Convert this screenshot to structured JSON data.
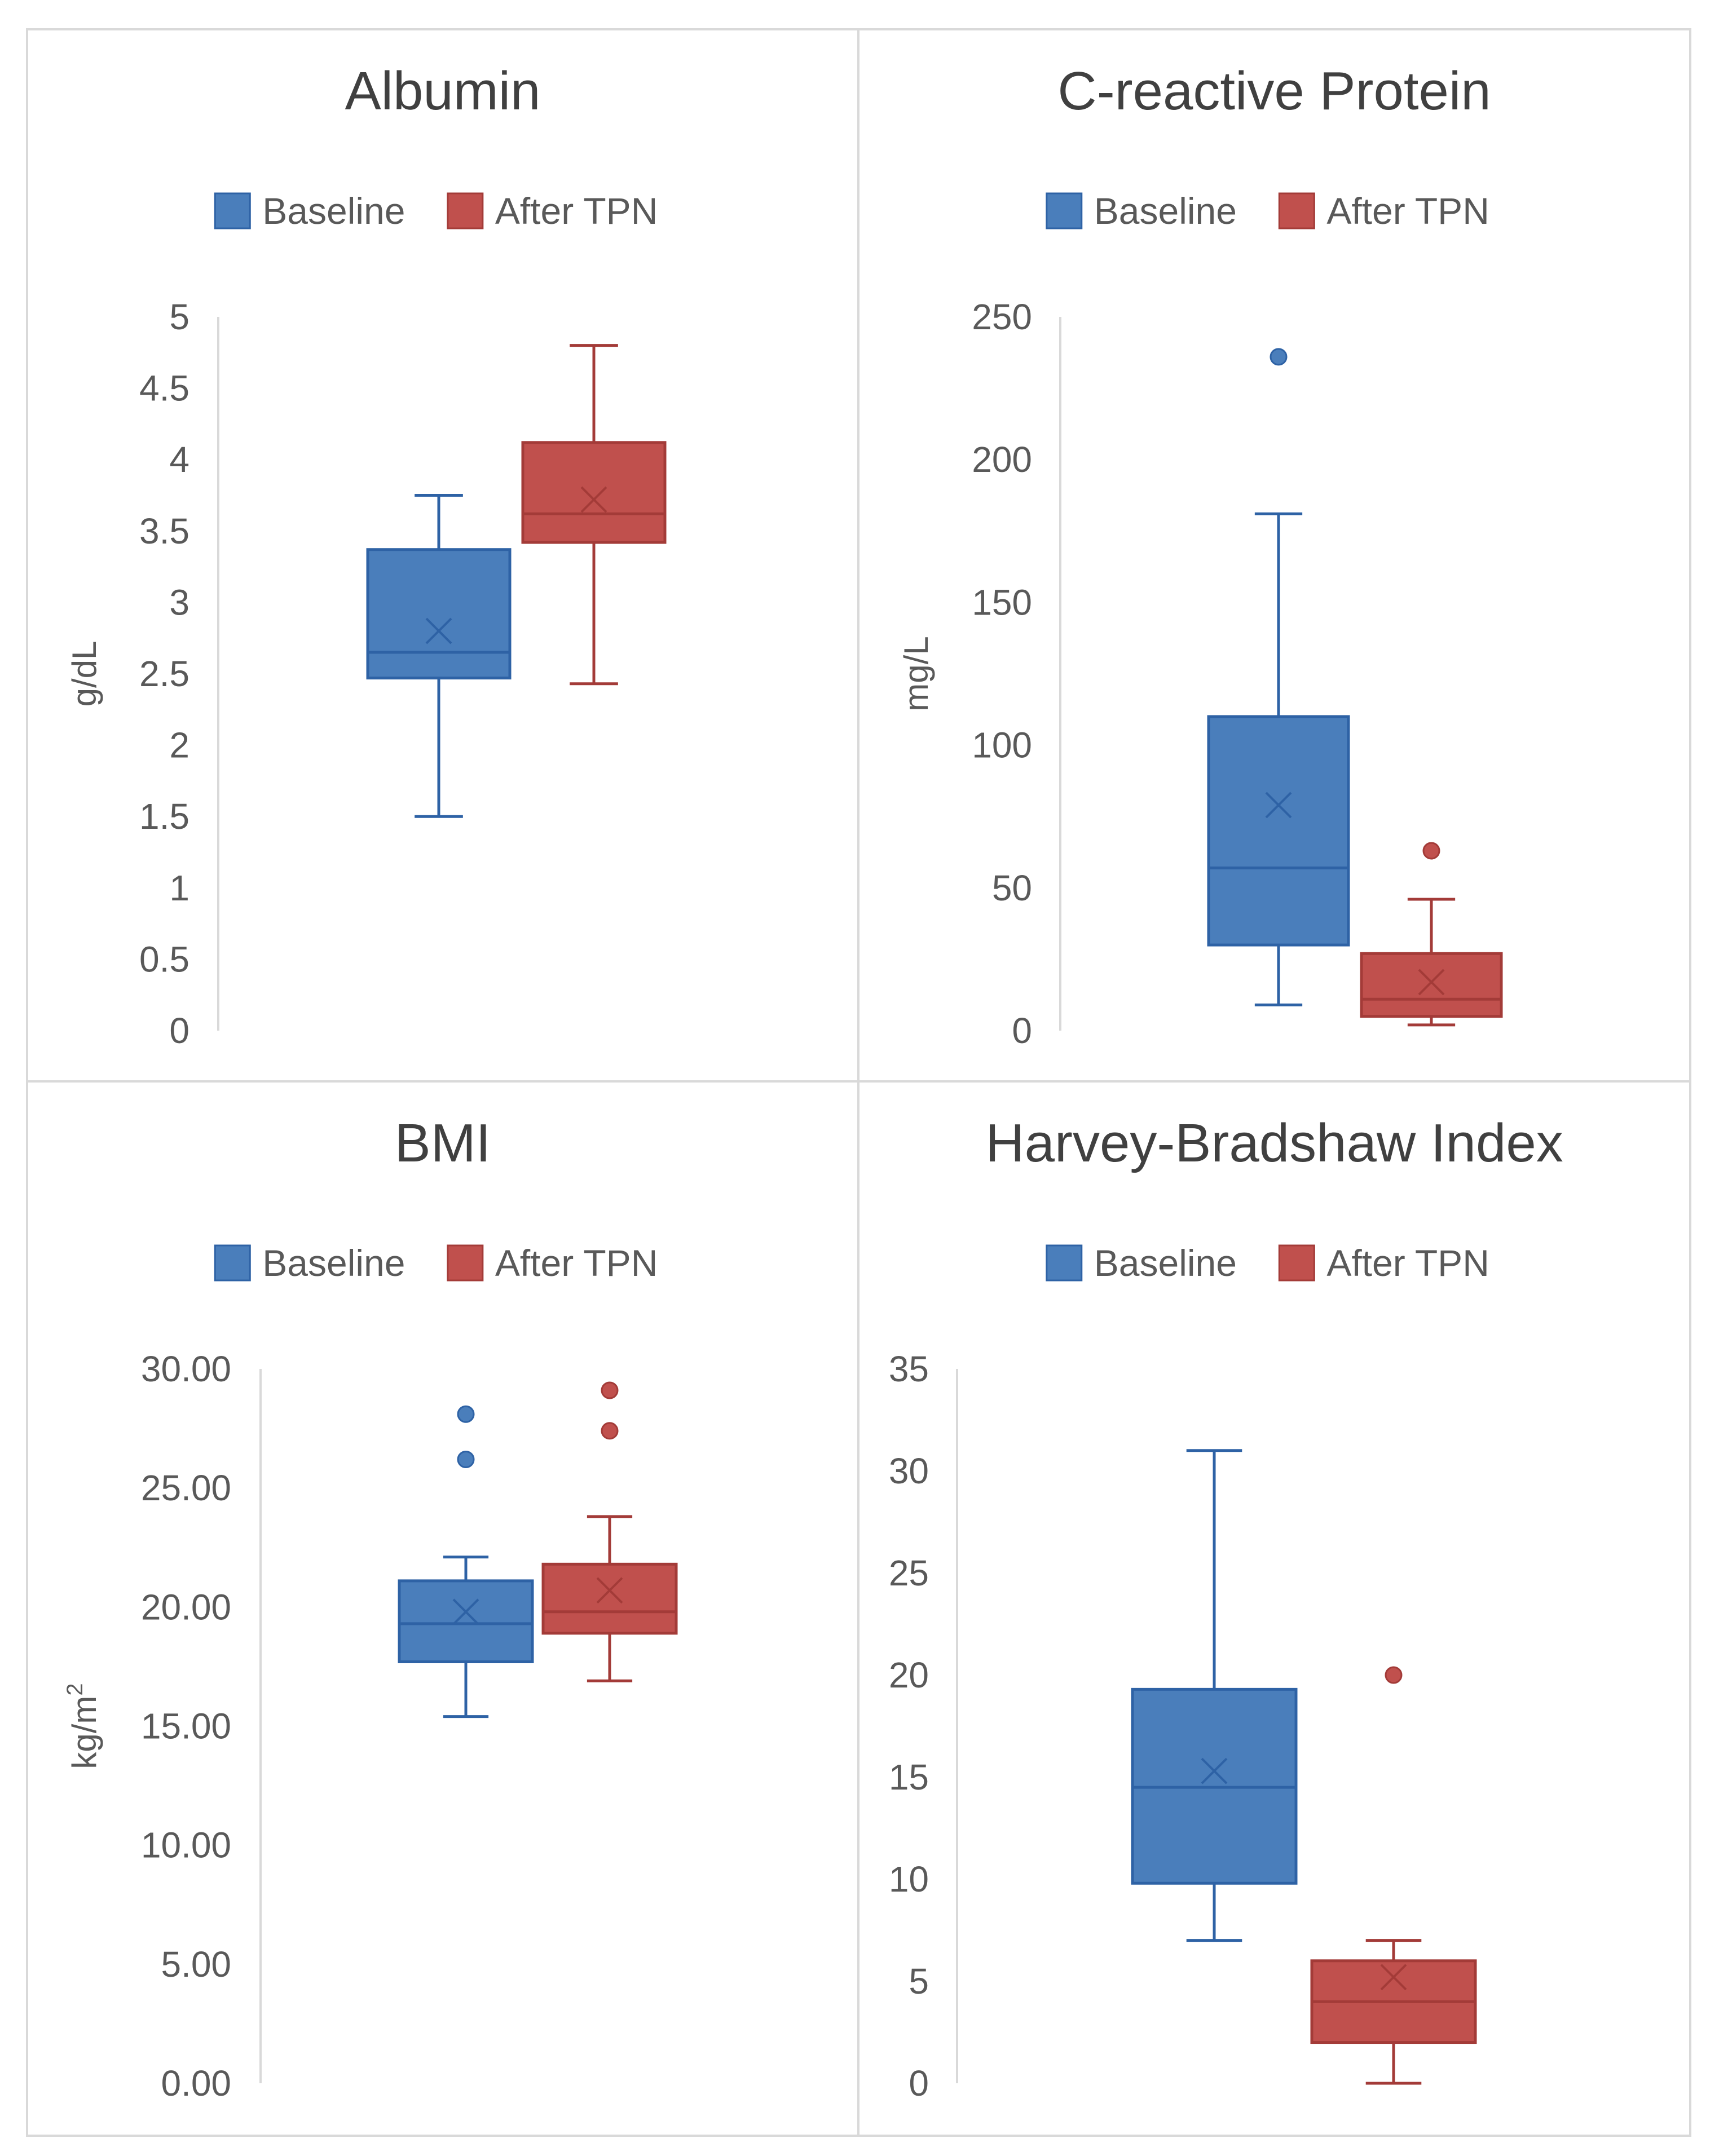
{
  "colors": {
    "baseline_fill": "#4a7ebb",
    "baseline_stroke": "#2e62a5",
    "after_fill": "#c0504d",
    "after_stroke": "#a33b38",
    "axis_text": "#595959",
    "title_text": "#404040",
    "panel_border": "#d9d9d9",
    "axis_line": "#d9d9d9"
  },
  "chart_data": [
    {
      "type": "box",
      "title": "Albumin",
      "ylabel": "g/dL",
      "legend": [
        "Baseline",
        "After TPN"
      ],
      "legend_position": "top",
      "ylim": [
        0,
        5
      ],
      "yticks": [
        "0",
        "0.5",
        "1",
        "1.5",
        "2",
        "2.5",
        "3",
        "3.5",
        "4",
        "4.5",
        "5"
      ],
      "tick_values": [
        0,
        0.5,
        1,
        1.5,
        2,
        2.5,
        3,
        3.5,
        4,
        4.5,
        5
      ],
      "series": [
        {
          "name": "Baseline",
          "min": 1.5,
          "q1": 2.47,
          "median": 2.65,
          "q3": 3.37,
          "max": 3.75,
          "mean": 2.8,
          "outliers": []
        },
        {
          "name": "After TPN",
          "min": 2.43,
          "q1": 3.42,
          "median": 3.62,
          "q3": 4.12,
          "max": 4.8,
          "mean": 3.72,
          "outliers": []
        }
      ]
    },
    {
      "type": "box",
      "title": "C-reactive Protein",
      "ylabel": "mg/L",
      "legend": [
        "Baseline",
        "After TPN"
      ],
      "legend_position": "top",
      "ylim": [
        0,
        250
      ],
      "yticks": [
        "0",
        "50",
        "100",
        "150",
        "200",
        "250"
      ],
      "tick_values": [
        0,
        50,
        100,
        150,
        200,
        250
      ],
      "series": [
        {
          "name": "Baseline",
          "min": 9,
          "q1": 30,
          "median": 57,
          "q3": 110,
          "max": 181,
          "mean": 79,
          "outliers": [
            236
          ]
        },
        {
          "name": "After TPN",
          "min": 2,
          "q1": 5,
          "median": 11,
          "q3": 27,
          "max": 46,
          "mean": 17,
          "outliers": [
            63
          ]
        }
      ]
    },
    {
      "type": "box",
      "title": "BMI",
      "ylabel": "kg/m",
      "ylabel_superscript": "2",
      "legend": [
        "Baseline",
        "After TPN"
      ],
      "legend_position": "top",
      "ylim": [
        0,
        30
      ],
      "yticks": [
        "0.00",
        "5.00",
        "10.00",
        "15.00",
        "20.00",
        "25.00",
        "30.00"
      ],
      "tick_values": [
        0,
        5,
        10,
        15,
        20,
        25,
        30
      ],
      "series": [
        {
          "name": "Baseline",
          "min": 15.4,
          "q1": 17.7,
          "median": 19.3,
          "q3": 21.1,
          "max": 22.1,
          "mean": 19.8,
          "outliers": [
            26.2,
            28.1
          ]
        },
        {
          "name": "After TPN",
          "min": 16.9,
          "q1": 18.9,
          "median": 19.8,
          "q3": 21.8,
          "max": 23.8,
          "mean": 20.7,
          "outliers": [
            27.4,
            29.1
          ]
        }
      ]
    },
    {
      "type": "box",
      "title": "Harvey-Bradshaw Index",
      "ylabel": "",
      "legend": [
        "Baseline",
        "After TPN"
      ],
      "legend_position": "top",
      "ylim": [
        0,
        35
      ],
      "yticks": [
        "0",
        "5",
        "10",
        "15",
        "20",
        "25",
        "30",
        "35"
      ],
      "tick_values": [
        0,
        5,
        10,
        15,
        20,
        25,
        30,
        35
      ],
      "series": [
        {
          "name": "Baseline",
          "min": 7,
          "q1": 9.8,
          "median": 14.5,
          "q3": 19.3,
          "max": 31,
          "mean": 15.3,
          "outliers": []
        },
        {
          "name": "After TPN",
          "min": 0,
          "q1": 2,
          "median": 4,
          "q3": 6,
          "max": 7,
          "mean": 5.2,
          "outliers": [
            20
          ]
        }
      ]
    }
  ]
}
